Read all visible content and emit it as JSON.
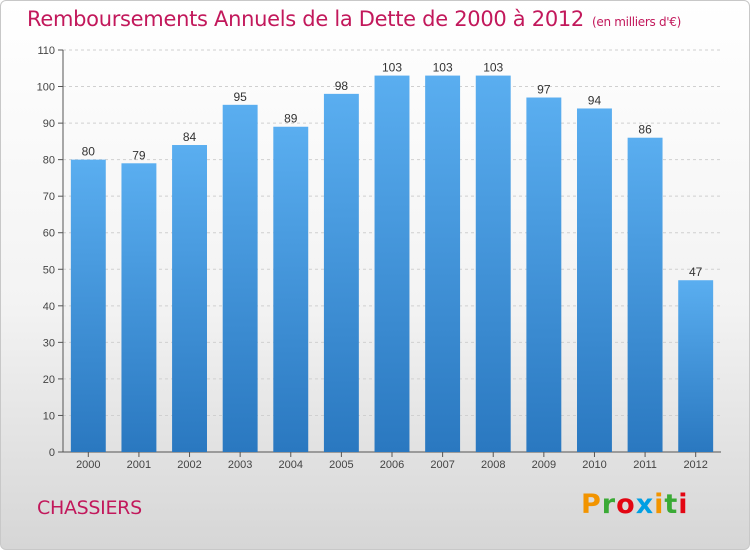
{
  "header": {
    "title": "Remboursements Annuels de la Dette de 2000 à 2012",
    "unit": "(en milliers d'€)"
  },
  "footer": {
    "commune": "CHASSIERS",
    "logo_letters": [
      "P",
      "r",
      "o",
      "x",
      "i",
      "t",
      "i"
    ],
    "logo_colors": [
      "#f29400",
      "#3aaa35",
      "#e30613",
      "#009fe3",
      "#f29400",
      "#3aaa35",
      "#e30613"
    ]
  },
  "colors": {
    "bar_top": "#5aaef0",
    "bar_bottom": "#2a78c0",
    "accent": "#c2185b"
  },
  "chart_data": {
    "type": "bar",
    "categories": [
      "2000",
      "2001",
      "2002",
      "2003",
      "2004",
      "2005",
      "2006",
      "2007",
      "2008",
      "2009",
      "2010",
      "2011",
      "2012"
    ],
    "values": [
      80,
      79,
      84,
      95,
      89,
      98,
      103,
      103,
      103,
      97,
      94,
      86,
      47
    ],
    "ylim": [
      0,
      110
    ],
    "yticks": [
      0,
      10,
      20,
      30,
      40,
      50,
      60,
      70,
      80,
      90,
      100,
      110
    ],
    "grid": true,
    "legend": "none"
  }
}
